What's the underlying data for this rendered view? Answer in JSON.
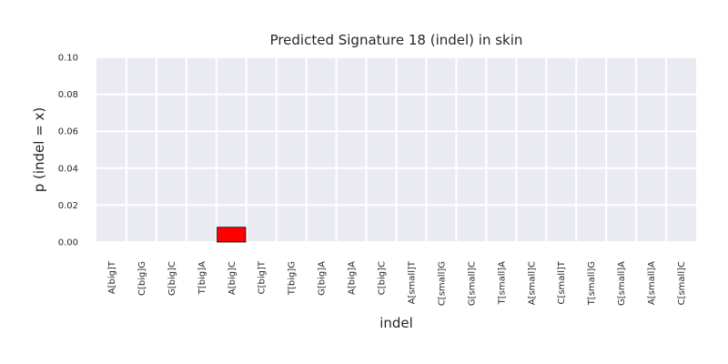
{
  "chart_data": {
    "type": "bar",
    "title": "Predicted Signature 18 (indel) in skin",
    "xlabel": "indel",
    "ylabel": "p (indel = x)",
    "ylim": [
      0,
      0.1
    ],
    "yticks": [
      "0.00",
      "0.02",
      "0.04",
      "0.06",
      "0.08",
      "0.10"
    ],
    "grid": true,
    "categories": [
      "A[big]T",
      "C[big]G",
      "G[big]C",
      "T[big]A",
      "A[big]C",
      "C[big]T",
      "T[big]G",
      "G[big]A",
      "A[big]A",
      "C[big]C",
      "A[small]T",
      "C[small]G",
      "G[small]C",
      "T[small]A",
      "A[small]C",
      "C[small]T",
      "T[small]G",
      "G[small]A",
      "A[small]A",
      "C[small]C"
    ],
    "values": [
      0,
      0,
      0,
      0,
      0.008,
      0,
      0,
      0,
      0,
      0,
      0,
      0,
      0,
      0,
      0,
      0,
      0,
      0,
      0,
      0
    ],
    "bar_color": "#ff0000",
    "plot_background": "#eaeaf2",
    "grid_color": "#ffffff"
  }
}
